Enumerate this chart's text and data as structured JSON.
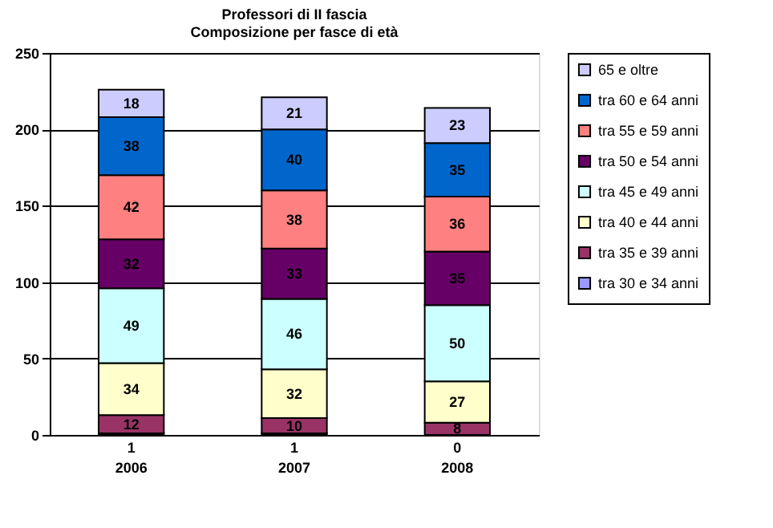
{
  "chart_data": {
    "type": "bar",
    "title": "Professori di II fascia\nComposizione per fasce di età",
    "categories": [
      "2006",
      "2007",
      "2008"
    ],
    "stacked": true,
    "data_labels": true,
    "legend": "right",
    "grid": "y",
    "ylim": [
      0,
      250
    ],
    "yticks": [
      0,
      50,
      100,
      150,
      200,
      250
    ],
    "series": [
      {
        "name": "tra 30 e 34 anni",
        "color": "#9999ff",
        "values": [
          1,
          1,
          0
        ]
      },
      {
        "name": "tra 35 e 39 anni",
        "color": "#993366",
        "values": [
          12,
          10,
          8
        ]
      },
      {
        "name": "tra 40 e 44 anni",
        "color": "#ffffcc",
        "values": [
          34,
          32,
          27
        ]
      },
      {
        "name": "tra 45 e 49 anni",
        "color": "#ccffff",
        "values": [
          49,
          46,
          50
        ]
      },
      {
        "name": "tra 50 e 54 anni",
        "color": "#660066",
        "values": [
          32,
          33,
          35
        ]
      },
      {
        "name": "tra 55 e 59 anni",
        "color": "#ff8080",
        "values": [
          42,
          38,
          36
        ]
      },
      {
        "name": "tra 60 e 64 anni",
        "color": "#0066cc",
        "values": [
          38,
          40,
          35
        ]
      },
      {
        "name": "65 e oltre",
        "color": "#ccccff",
        "values": [
          18,
          21,
          23
        ]
      }
    ]
  }
}
